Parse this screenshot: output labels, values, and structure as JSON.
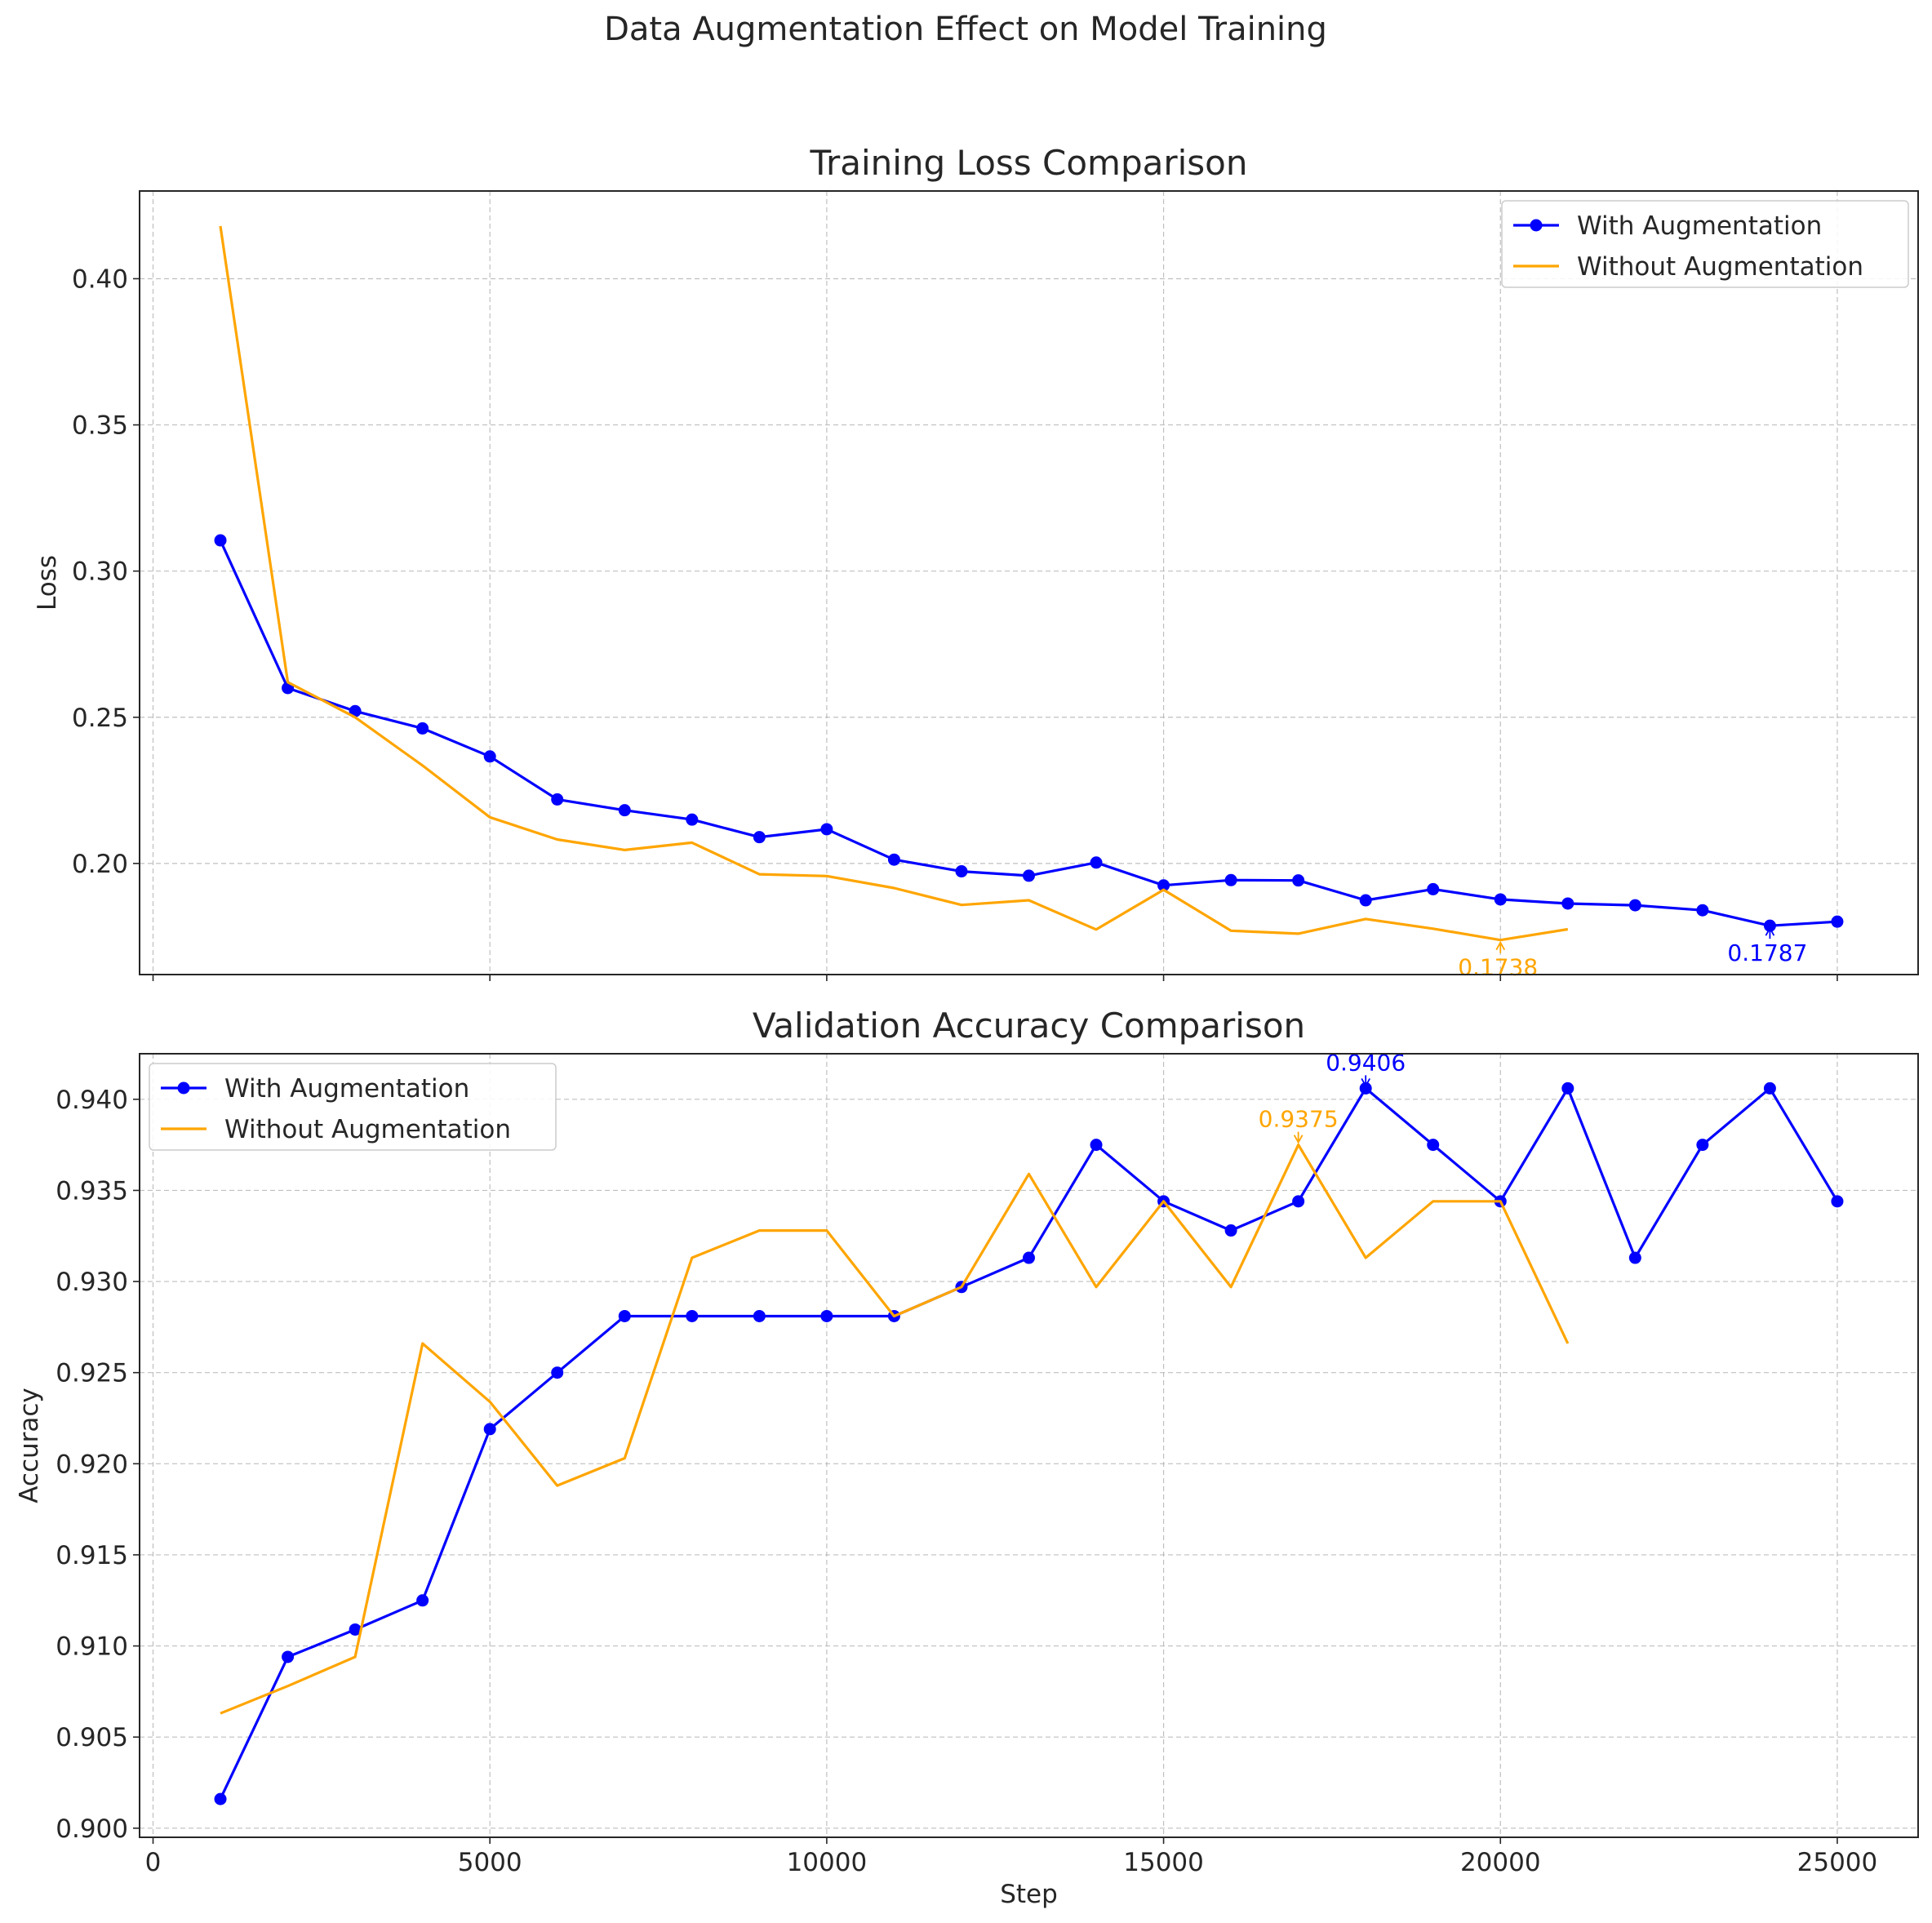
{
  "figure_title": "Data Augmentation Effect on Model Training",
  "colors": {
    "with": "#0000ff",
    "without": "#ffa500",
    "grid": "#b0b0b0",
    "text": "#262626"
  },
  "chart_data": [
    {
      "type": "line",
      "title": "Training Loss Comparison",
      "xlabel": "",
      "ylabel": "Loss",
      "xlim": [
        -200,
        26200
      ],
      "ylim": [
        0.162,
        0.43
      ],
      "xticks": [
        0,
        5000,
        10000,
        15000,
        20000,
        25000
      ],
      "show_xtick_labels": false,
      "yticks": [
        0.2,
        0.25,
        0.3,
        0.35,
        0.4
      ],
      "ytick_labels": [
        "0.20",
        "0.25",
        "0.30",
        "0.35",
        "0.40"
      ],
      "grid": true,
      "legend": "upper right",
      "series": [
        {
          "name": "With Augmentation",
          "color": "#0000ff",
          "marker": "circle",
          "x": [
            1000,
            2000,
            3000,
            4000,
            5000,
            6000,
            7000,
            8000,
            9000,
            10000,
            11000,
            12000,
            13000,
            14000,
            15000,
            16000,
            17000,
            18000,
            19000,
            20000,
            21000,
            22000,
            23000,
            24000,
            25000
          ],
          "y": [
            0.3105,
            0.26,
            0.2521,
            0.2462,
            0.2366,
            0.2219,
            0.2182,
            0.215,
            0.209,
            0.2117,
            0.2013,
            0.1973,
            0.1958,
            0.2003,
            0.1925,
            0.1943,
            0.1942,
            0.1874,
            0.1912,
            0.1877,
            0.1863,
            0.1857,
            0.184,
            0.1787,
            0.1801
          ]
        },
        {
          "name": "Without Augmentation",
          "color": "#ffa500",
          "marker": "none",
          "x": [
            1000,
            2000,
            3000,
            4000,
            5000,
            6000,
            7000,
            8000,
            9000,
            10000,
            11000,
            12000,
            13000,
            14000,
            15000,
            16000,
            17000,
            18000,
            19000,
            20000,
            21000
          ],
          "y": [
            0.418,
            0.262,
            0.25,
            0.2335,
            0.2158,
            0.2082,
            0.2046,
            0.2071,
            0.1963,
            0.1957,
            0.1916,
            0.1858,
            0.1874,
            0.1774,
            0.191,
            0.177,
            0.176,
            0.181,
            0.1777,
            0.1738,
            0.1775
          ]
        }
      ],
      "annotations": [
        {
          "text": "0.1738",
          "x": 20000,
          "y": 0.1738,
          "series": "without",
          "placement": "below"
        },
        {
          "text": "0.1787",
          "x": 24000,
          "y": 0.1787,
          "series": "with",
          "placement": "below"
        }
      ]
    },
    {
      "type": "line",
      "title": "Validation Accuracy Comparison",
      "xlabel": "Step",
      "ylabel": "Accuracy",
      "xlim": [
        -200,
        26200
      ],
      "ylim": [
        0.8995,
        0.9425
      ],
      "xticks": [
        0,
        5000,
        10000,
        15000,
        20000,
        25000
      ],
      "xtick_labels": [
        "0",
        "5000",
        "10000",
        "15000",
        "20000",
        "25000"
      ],
      "show_xtick_labels": true,
      "yticks": [
        0.9,
        0.905,
        0.91,
        0.915,
        0.92,
        0.925,
        0.93,
        0.935,
        0.94
      ],
      "ytick_labels": [
        "0.900",
        "0.905",
        "0.910",
        "0.915",
        "0.920",
        "0.925",
        "0.930",
        "0.935",
        "0.940"
      ],
      "grid": true,
      "legend": "upper left",
      "series": [
        {
          "name": "With Augmentation",
          "color": "#0000ff",
          "marker": "circle",
          "x": [
            1000,
            2000,
            3000,
            4000,
            5000,
            6000,
            7000,
            8000,
            9000,
            10000,
            11000,
            12000,
            13000,
            14000,
            15000,
            16000,
            17000,
            18000,
            19000,
            20000,
            21000,
            22000,
            23000,
            24000,
            25000
          ],
          "y": [
            0.9016,
            0.9094,
            0.9109,
            0.9125,
            0.9219,
            0.925,
            0.9281,
            0.9281,
            0.9281,
            0.9281,
            0.9281,
            0.9297,
            0.9313,
            0.9375,
            0.9344,
            0.9328,
            0.9344,
            0.9406,
            0.9375,
            0.9344,
            0.9406,
            0.9313,
            0.9375,
            0.9406,
            0.9344
          ]
        },
        {
          "name": "Without Augmentation",
          "color": "#ffa500",
          "marker": "none",
          "x": [
            1000,
            2000,
            3000,
            4000,
            5000,
            6000,
            7000,
            8000,
            9000,
            10000,
            11000,
            12000,
            13000,
            14000,
            15000,
            16000,
            17000,
            18000,
            19000,
            20000,
            21000
          ],
          "y": [
            0.9063,
            0.9078,
            0.9094,
            0.9266,
            0.9234,
            0.9188,
            0.9203,
            0.9313,
            0.9328,
            0.9328,
            0.9281,
            0.9297,
            0.9359,
            0.9297,
            0.9344,
            0.9297,
            0.9375,
            0.9313,
            0.9344,
            0.9344,
            0.9266
          ]
        }
      ],
      "annotations": [
        {
          "text": "0.9406",
          "x": 18000,
          "y": 0.9406,
          "series": "with",
          "placement": "above"
        },
        {
          "text": "0.9375",
          "x": 17000,
          "y": 0.9375,
          "series": "without",
          "placement": "above"
        }
      ]
    }
  ]
}
